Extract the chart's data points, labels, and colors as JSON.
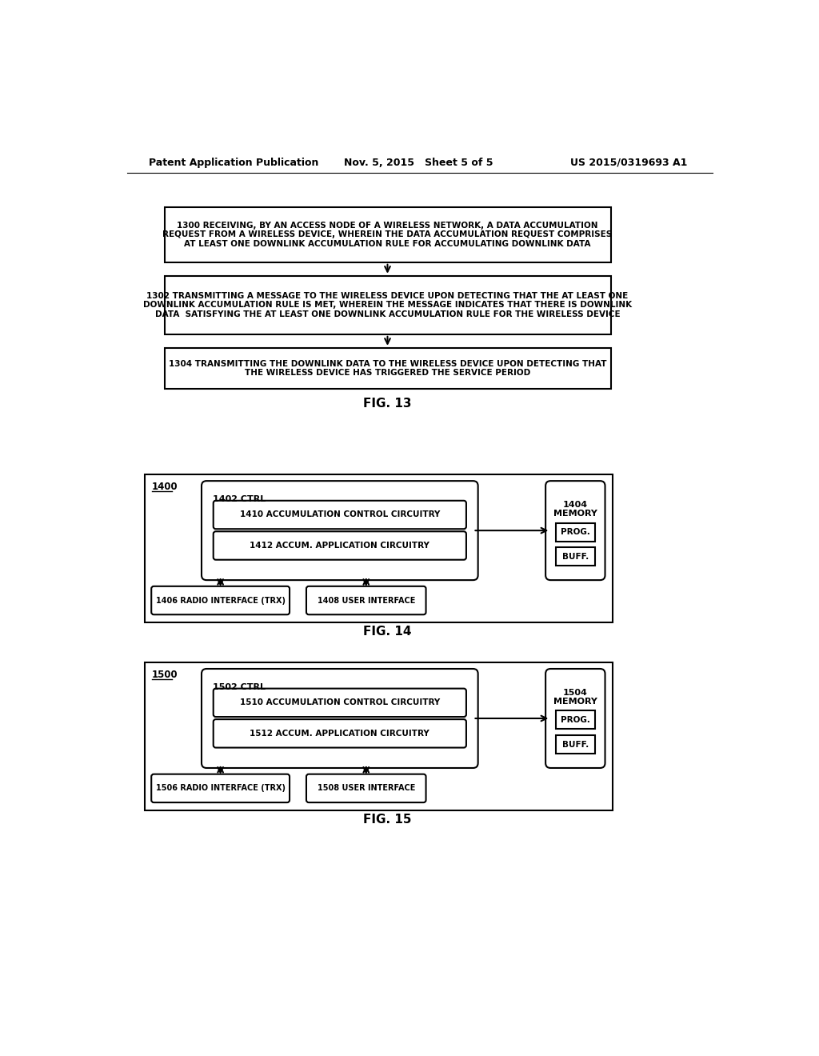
{
  "bg_color": "#ffffff",
  "text_color": "#000000",
  "header_left": "Patent Application Publication",
  "header_mid": "Nov. 5, 2015   Sheet 5 of 5",
  "header_right": "US 2015/0319693 A1",
  "fig13": {
    "label": "FIG. 13",
    "box1_text": "1300 RECEIVING, BY AN ACCESS NODE OF A WIRELESS NETWORK, A DATA ACCUMULATION\nREQUEST FROM A WIRELESS DEVICE, WHEREIN THE DATA ACCUMULATION REQUEST COMPRISES\nAT LEAST ONE DOWNLINK ACCUMULATION RULE FOR ACCUMULATING DOWNLINK DATA",
    "box2_text": "1302 TRANSMITTING A MESSAGE TO THE WIRELESS DEVICE UPON DETECTING THAT THE AT LEAST ONE\nDOWNLINK ACCUMULATION RULE IS MET, WHEREIN THE MESSAGE INDICATES THAT THERE IS DOWNLINK\nDATA  SATISFYING THE AT LEAST ONE DOWNLINK ACCUMULATION RULE FOR THE WIRELESS DEVICE",
    "box3_text": "1304 TRANSMITTING THE DOWNLINK DATA TO THE WIRELESS DEVICE UPON DETECTING THAT\nTHE WIRELESS DEVICE HAS TRIGGERED THE SERVICE PERIOD"
  },
  "fig14": {
    "label": "FIG. 14",
    "outer_label": "1400",
    "ctrl_label": "1402 CTRL",
    "acc_ctrl_label": "1410 ACCUMULATION CONTROL CIRCUITRY",
    "acc_app_label": "1412 ACCUM. APPLICATION CIRCUITRY",
    "memory_label": "1404\nMEMORY",
    "prog_label": "PROG.",
    "buff_label": "BUFF.",
    "radio_label": "1406 RADIO INTERFACE (TRX)",
    "user_label": "1408 USER INTERFACE"
  },
  "fig15": {
    "label": "FIG. 15",
    "outer_label": "1500",
    "ctrl_label": "1502 CTRL",
    "acc_ctrl_label": "1510 ACCUMULATION CONTROL CIRCUITRY",
    "acc_app_label": "1512 ACCUM. APPLICATION CIRCUITRY",
    "memory_label": "1504\nMEMORY",
    "prog_label": "PROG.",
    "buff_label": "BUFF.",
    "radio_label": "1506 RADIO INTERFACE (TRX)",
    "user_label": "1508 USER INTERFACE"
  }
}
